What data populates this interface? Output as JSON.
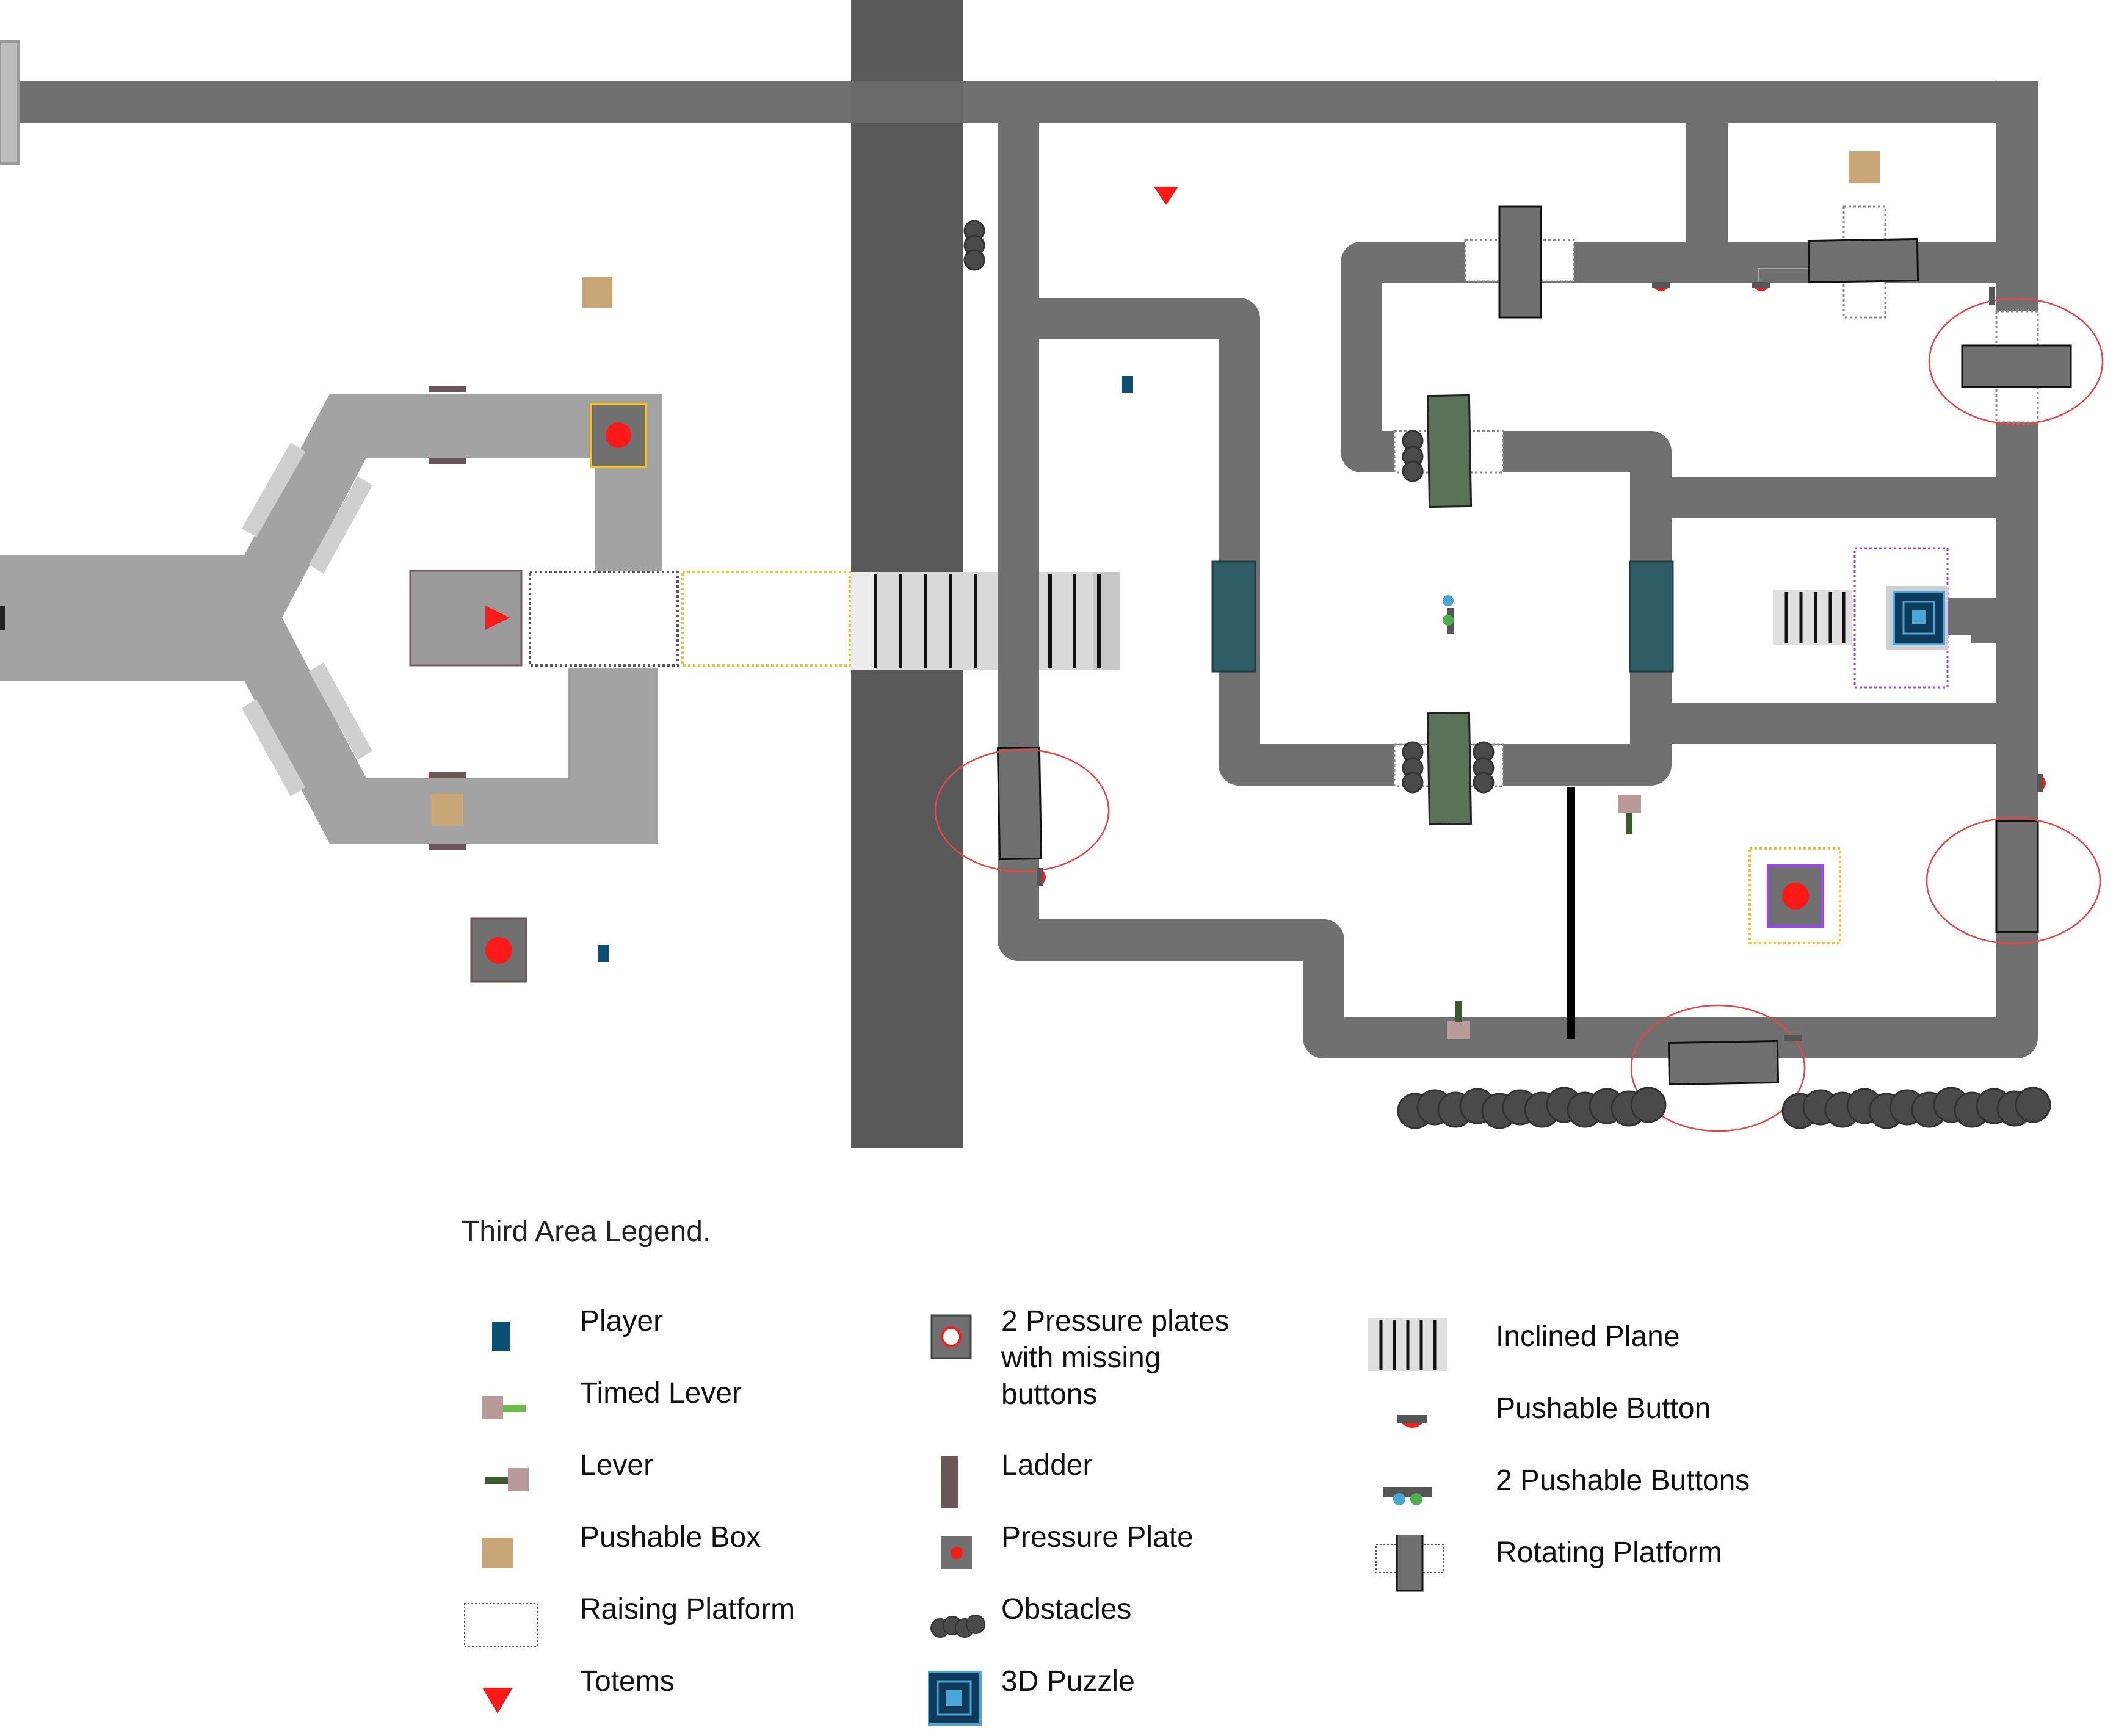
{
  "legend": {
    "title": "Third Area Legend.",
    "items": [
      {
        "key": "player",
        "label": "Player",
        "icon": "player-icon"
      },
      {
        "key": "timed_lever",
        "label": "Timed Lever",
        "icon": "timed-lever-icon"
      },
      {
        "key": "lever",
        "label": "Lever",
        "icon": "lever-icon"
      },
      {
        "key": "pushable_box",
        "label": "Pushable Box",
        "icon": "pushable-box-icon"
      },
      {
        "key": "raising_platform",
        "label": "Raising Platform",
        "icon": "raising-platform-icon"
      },
      {
        "key": "totems",
        "label": "Totems",
        "icon": "totem-icon"
      },
      {
        "key": "two_pressure_plates",
        "label": "2 Pressure plates\nwith missing\nbuttons",
        "icon": "pressure-plates-missing-buttons-icon"
      },
      {
        "key": "ladder",
        "label": "Ladder",
        "icon": "ladder-icon"
      },
      {
        "key": "pressure_plate",
        "label": "Pressure Plate",
        "icon": "pressure-plate-icon"
      },
      {
        "key": "obstacles",
        "label": "Obstacles",
        "icon": "obstacles-icon"
      },
      {
        "key": "puzzle_3d",
        "label": "3D Puzzle",
        "icon": "puzzle-3d-icon"
      },
      {
        "key": "inclined_plane",
        "label": "Inclined Plane",
        "icon": "inclined-plane-icon"
      },
      {
        "key": "pushable_button",
        "label": "Pushable Button",
        "icon": "pushable-button-icon"
      },
      {
        "key": "two_pushable_buttons",
        "label": "2 Pushable Buttons",
        "icon": "two-pushable-buttons-icon"
      },
      {
        "key": "rotating_platform",
        "label": "Rotating Platform",
        "icon": "rotating-platform-icon"
      }
    ]
  },
  "colors": {
    "path_dark": "#707070",
    "column": "#595959",
    "light_area": "#a3a3a3",
    "player": "#0d4e73",
    "box": "#c9a678",
    "totem": "#ff1a1a",
    "timed_lever_handle": "#6dbb4a",
    "lever_handle": "#3b5a2f",
    "lever_base": "#b89a9a",
    "ladder": "#6b5555",
    "teal_platform": "#2e5d66",
    "green_platform": "#5a7358",
    "highlight_ring": "#e64545",
    "yellow_dotted": "#f2c233",
    "purple_dotted": "#a040ff"
  }
}
